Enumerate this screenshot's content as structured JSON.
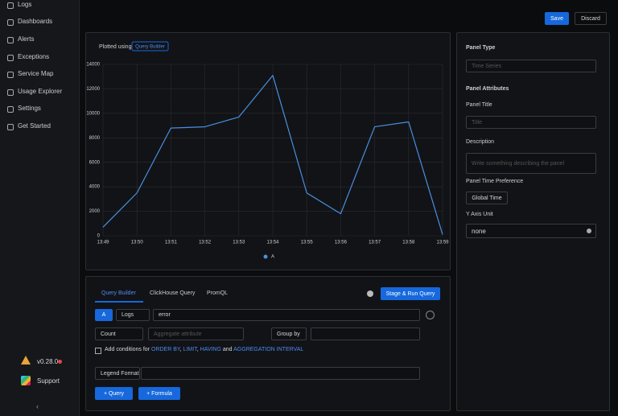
{
  "sidebar": {
    "items": [
      "Logs",
      "Dashboards",
      "Alerts",
      "Exceptions",
      "Service Map",
      "Usage Explorer",
      "Settings",
      "Get Started"
    ],
    "version": "v0.28.0",
    "support": "Support"
  },
  "header": {
    "save": "Save",
    "discard": "Discard"
  },
  "chart_panel": {
    "plotted_using": "Plotted using",
    "source": "Query Builder"
  },
  "chart_data": {
    "type": "line",
    "categories": [
      "13:49",
      "13:50",
      "13:51",
      "13:52",
      "13:53",
      "13:54",
      "13:55",
      "13:56",
      "13:57",
      "13:58",
      "13:59"
    ],
    "series": [
      {
        "name": "A",
        "color": "#4a8fe0",
        "values": [
          700,
          3500,
          8800,
          8900,
          9700,
          13100,
          3500,
          1800,
          8900,
          9300,
          100
        ]
      }
    ],
    "ylim": [
      0,
      14000
    ],
    "yticks": [
      0,
      2000,
      4000,
      6000,
      8000,
      10000,
      12000,
      14000
    ],
    "grid": true
  },
  "query_panel": {
    "tabs": [
      "Query Builder",
      "ClickHouse Query",
      "PromQL"
    ],
    "run": "Stage & Run Query",
    "query": {
      "name": "A",
      "source": "Logs",
      "filter": "error",
      "aggregate": "Count",
      "aggregate_placeholder": "Aggregate attribute",
      "group_by": "Group by"
    },
    "conditions": {
      "prefix": "Add conditions for",
      "links": [
        "ORDER BY",
        "LIMIT",
        "HAVING",
        "AGGREGATION INTERVAL"
      ],
      "separator": ",",
      "and": "and"
    },
    "legend_format": "Legend Format",
    "add_query": "+ Query",
    "add_formula": "+ Formula"
  },
  "settings_panel": {
    "panel_type": "Panel Type",
    "panel_type_value": "Time Series",
    "panel_attributes": "Panel Attributes",
    "panel_title": "Panel Title",
    "panel_title_placeholder": "Title",
    "description": "Description",
    "description_placeholder": "Write something describing the  panel",
    "time_preference": "Panel Time Preference",
    "time_preference_value": "Global Time",
    "y_axis_unit": "Y Axis Unit",
    "y_axis_unit_value": "none"
  }
}
